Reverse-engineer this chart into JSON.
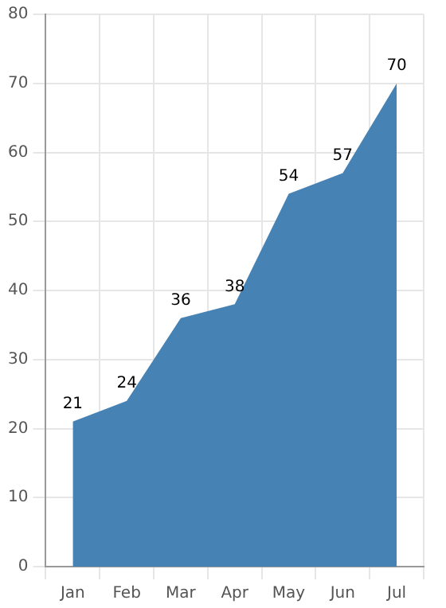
{
  "chart_data": {
    "type": "area",
    "categories": [
      "Jan",
      "Feb",
      "Mar",
      "Apr",
      "May",
      "Jun",
      "Jul"
    ],
    "series": [
      {
        "color": "#4682b4",
        "values": [
          21,
          24,
          36,
          38,
          54,
          57,
          70
        ]
      }
    ],
    "ylim": [
      0,
      80
    ],
    "yticks": [
      0,
      10,
      20,
      30,
      40,
      50,
      60,
      70,
      80
    ],
    "grid": true,
    "legend": false,
    "data_labels": true
  }
}
